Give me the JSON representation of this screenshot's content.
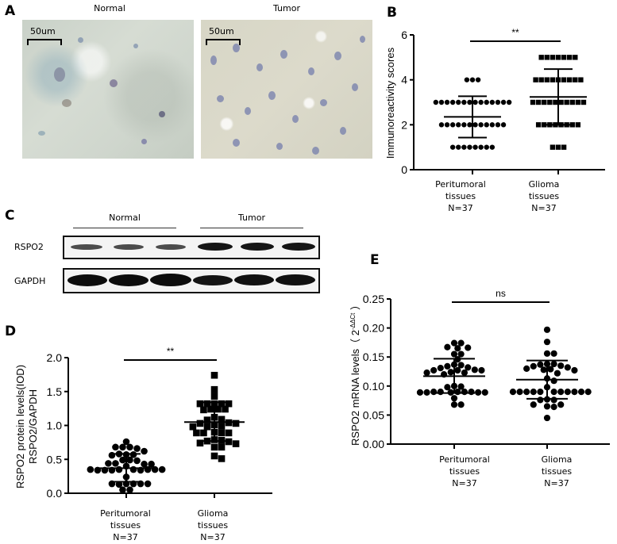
{
  "panels": {
    "A": {
      "letter": "A",
      "images": [
        {
          "title": "Normal",
          "scale_bar": "50um"
        },
        {
          "title": "Tumor",
          "scale_bar": "50um"
        }
      ]
    },
    "B": {
      "letter": "B"
    },
    "C": {
      "letter": "C",
      "groups": [
        "Normal",
        "Tumor"
      ],
      "rows": [
        "RSPO2",
        "GAPDH"
      ]
    },
    "D": {
      "letter": "D"
    },
    "E": {
      "letter": "E"
    }
  },
  "chart_data": [
    {
      "panel": "B",
      "type": "scatter",
      "title": "",
      "ylabel": "Immunoreactivity scores",
      "xlabel": "",
      "ylim": [
        0,
        6
      ],
      "yticks": [
        "0",
        "2",
        "4",
        "6"
      ],
      "categories": [
        "Peritumoral\ntissues\nN=37",
        "Glioma\ntissues\nN=37"
      ],
      "category_lines": [
        [
          "Peritumoral",
          "tissues",
          "N=37"
        ],
        [
          "Glioma",
          "tissues",
          "N=37"
        ]
      ],
      "significance": "**",
      "marker": [
        "circle",
        "square"
      ],
      "series": [
        {
          "name": "Peritumoral tissues",
          "n": 37,
          "mean": 2.35,
          "sd_low": 1.43,
          "sd_high": 3.27,
          "values_counts": {
            "1": 8,
            "2": 12,
            "3": 14,
            "4": 3
          }
        },
        {
          "name": "Glioma tissues",
          "n": 37,
          "mean": 3.24,
          "sd_low": 2.0,
          "sd_high": 4.48,
          "values_counts": {
            "1": 3,
            "2": 8,
            "3": 10,
            "4": 9,
            "5": 7
          }
        }
      ]
    },
    {
      "panel": "D",
      "type": "scatter",
      "ylabel": "RSPO2 protein levels(IOD)\nRSPO2/GAPDH",
      "ylabel_lines": [
        "RSPO2 protein levels(IOD)",
        "RSPO2/GAPDH"
      ],
      "ylim": [
        0,
        2.0
      ],
      "yticks": [
        "0.0",
        "0.5",
        "1.0",
        "1.5",
        "2.0"
      ],
      "categories": [
        "Peritumoral\ntissues\nN=37",
        "Glioma\ntissues\nN=37"
      ],
      "category_lines": [
        [
          "Peritumoral",
          "tissues",
          "N=37"
        ],
        [
          "Glioma",
          "tissues",
          "N=37"
        ]
      ],
      "significance": "**",
      "marker": [
        "circle",
        "square"
      ],
      "series": [
        {
          "name": "Peritumoral tissues",
          "n": 37,
          "mean": 0.37,
          "sd_low": 0.17,
          "sd_high": 0.58,
          "values": [
            0.76,
            0.68,
            0.68,
            0.66,
            0.68,
            0.62,
            0.57,
            0.57,
            0.58,
            0.56,
            0.49,
            0.49,
            0.48,
            0.44,
            0.43,
            0.44,
            0.43,
            0.4,
            0.35,
            0.35,
            0.34,
            0.34,
            0.35,
            0.34,
            0.35,
            0.34,
            0.35,
            0.35,
            0.24,
            0.14,
            0.14,
            0.13,
            0.14,
            0.14,
            0.14,
            0.05,
            0.05
          ]
        },
        {
          "name": "Glioma tissues",
          "n": 37,
          "mean": 1.05,
          "sd_low": 0.77,
          "sd_high": 1.34,
          "values": [
            1.74,
            1.53,
            1.43,
            1.32,
            1.32,
            1.32,
            1.32,
            1.32,
            1.24,
            1.24,
            1.24,
            1.23,
            1.12,
            1.09,
            1.08,
            1.04,
            1.03,
            1.03,
            1.01,
            0.99,
            0.98,
            0.98,
            0.9,
            0.89,
            0.89,
            0.89,
            0.89,
            0.79,
            0.78,
            0.77,
            0.76,
            0.74,
            0.73,
            0.68,
            0.68,
            0.55,
            0.51
          ]
        }
      ]
    },
    {
      "panel": "E",
      "type": "scatter",
      "ylabel": "RSPO2 mRNA levels（2-ΔΔCt）",
      "ylabel_main": "RSPO2 mRNA levels（ 2",
      "ylabel_sup": "-ΔΔCt",
      "ylabel_end": " ）",
      "ylim": [
        0,
        0.25
      ],
      "yticks": [
        "0.00",
        "0.05",
        "0.10",
        "0.15",
        "0.20",
        "0.25"
      ],
      "categories": [
        "Peritumoral\ntissues\nN=37",
        "Glioma\ntissues\nN=37"
      ],
      "category_lines": [
        [
          "Peritumoral",
          "tissues",
          "N=37"
        ],
        [
          "Glioma",
          "tissues",
          "N=37"
        ]
      ],
      "significance": "ns",
      "marker": [
        "circle",
        "circle"
      ],
      "series": [
        {
          "name": "Peritumoral tissues",
          "n": 37,
          "mean": 0.117,
          "sd_low": 0.088,
          "sd_high": 0.147,
          "values": [
            0.174,
            0.174,
            0.167,
            0.166,
            0.165,
            0.155,
            0.155,
            0.146,
            0.137,
            0.136,
            0.134,
            0.132,
            0.131,
            0.128,
            0.127,
            0.127,
            0.127,
            0.124,
            0.123,
            0.123,
            0.12,
            0.1,
            0.099,
            0.098,
            0.09,
            0.09,
            0.09,
            0.09,
            0.09,
            0.089,
            0.089,
            0.089,
            0.089,
            0.089,
            0.079,
            0.068,
            0.068
          ]
        },
        {
          "name": "Glioma tissues",
          "n": 37,
          "mean": 0.111,
          "sd_low": 0.078,
          "sd_high": 0.144,
          "values": [
            0.197,
            0.176,
            0.156,
            0.156,
            0.138,
            0.138,
            0.137,
            0.135,
            0.134,
            0.132,
            0.13,
            0.129,
            0.128,
            0.127,
            0.122,
            0.113,
            0.109,
            0.098,
            0.09,
            0.09,
            0.09,
            0.09,
            0.09,
            0.09,
            0.09,
            0.09,
            0.09,
            0.09,
            0.09,
            0.077,
            0.076,
            0.076,
            0.068,
            0.068,
            0.065,
            0.064,
            0.045
          ]
        }
      ]
    }
  ],
  "colors": {
    "ink": "#000000",
    "blot_band": "#1a1a1a"
  }
}
